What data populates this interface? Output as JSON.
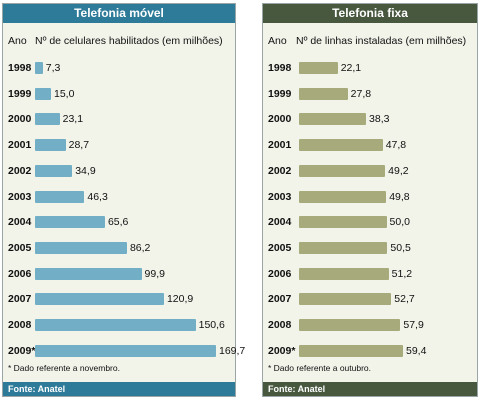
{
  "chart_data": [
    {
      "type": "bar",
      "orientation": "horizontal",
      "title": "Telefonia móvel",
      "category_header": "Ano",
      "value_header": "Nº de celulares habilitados (em milhões)",
      "categories": [
        "1998",
        "1999",
        "2000",
        "2001",
        "2002",
        "2003",
        "2004",
        "2005",
        "2006",
        "2007",
        "2008",
        "2009*"
      ],
      "values": [
        7.3,
        15.0,
        23.1,
        28.7,
        34.9,
        46.3,
        65.6,
        86.2,
        99.9,
        120.9,
        150.6,
        169.7
      ],
      "value_labels": [
        "7,3",
        "15,0",
        "23,1",
        "28,7",
        "34,9",
        "46,3",
        "65,6",
        "86,2",
        "99,9",
        "120,9",
        "150,6",
        "169,7"
      ],
      "footnote": "* Dado referente a novembro.",
      "source": "Fonte: Anatel",
      "color": "#72aec6"
    },
    {
      "type": "bar",
      "orientation": "horizontal",
      "title": "Telefonia fixa",
      "category_header": "Ano",
      "value_header": "Nº de linhas instaladas (em milhões)",
      "categories": [
        "1998",
        "1999",
        "2000",
        "2001",
        "2002",
        "2003",
        "2004",
        "2005",
        "2006",
        "2007",
        "2008",
        "2009*"
      ],
      "values": [
        22.1,
        27.8,
        38.3,
        47.8,
        49.2,
        49.8,
        50.0,
        50.5,
        51.2,
        52.7,
        57.9,
        59.4
      ],
      "value_labels": [
        "22,1",
        "27,8",
        "38,3",
        "47,8",
        "49,2",
        "49,8",
        "50,0",
        "50,5",
        "51,2",
        "52,7",
        "57,9",
        "59,4"
      ],
      "footnote": "* Dado referente a outubro.",
      "source": "Fonte: Anatel",
      "color": "#a7ab7b"
    }
  ]
}
